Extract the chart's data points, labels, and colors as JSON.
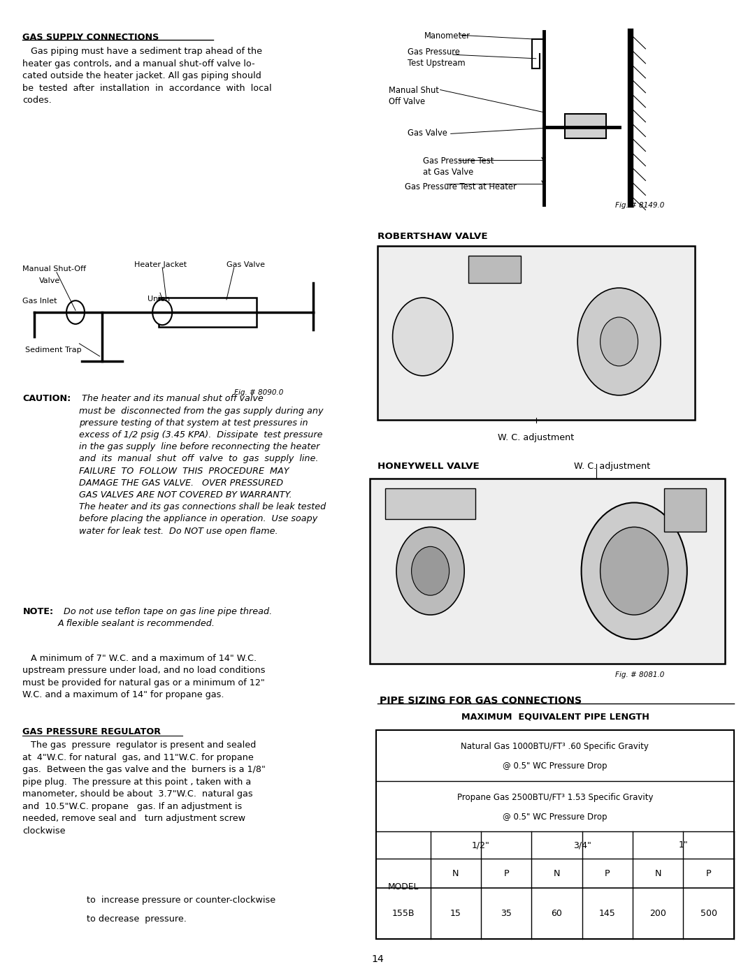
{
  "page_number": "14",
  "background_color": "#ffffff",
  "text_color": "#000000",
  "left_column": {
    "section1_title": "GAS SUPPLY CONNECTIONS",
    "section1_body_lines": [
      "   Gas piping must have a sediment trap ahead of the",
      "heater gas controls, and a manual shut-off valve lo-",
      "cated outside the heater jacket. All gas piping should",
      "be  tested  after  installation  in  accordance  with  local",
      "codes."
    ],
    "fig1_label": "Fig. # 8090.0",
    "caution_bold": "CAUTION:",
    "caution_body": " The heater and its manual shut off valve\nmust be  disconnected from the gas supply during any\npressure testing of that system at test pressures in\nexcess of 1/2 psig (3.45 KPA).  Dissipate  test pressure\nin the gas supply  line before reconnecting the heater\nand  its  manual  shut  off  valve  to  gas  supply  line.\nFAILURE  TO  FOLLOW  THIS  PROCEDURE  MAY\nDAMAGE THE GAS VALVE.   OVER PRESSURED\nGAS VALVES ARE NOT COVERED BY WARRANTY.\nThe heater and its gas connections shall be leak tested\nbefore placing the appliance in operation.  Use soapy\nwater for leak test.  Do NOT use open flame.",
    "note_bold": "NOTE:",
    "note_body": "  Do not use teflon tape on gas line pipe thread.\nA flexible sealant is recommended.",
    "para1_lines": [
      "   A minimum of 7\" W.C. and a maximum of 14\" W.C.",
      "upstream pressure under load, and no load conditions",
      "must be provided for natural gas or a minimum of 12\"",
      "W.C. and a maximum of 14\" for propane gas."
    ],
    "section2_title": "GAS PRESSURE REGULATOR",
    "section2_body_lines": [
      "   The gas  pressure  regulator is present and sealed",
      "at  4\"W.C. for natural  gas, and 11\"W.C. for propane",
      "gas.  Between the gas valve and the  burners is a 1/8\"",
      "pipe plug.  The pressure at this point , taken with a",
      "manometer, should be about  3.7\"W.C.  natural gas",
      "and  10.5\"W.C. propane   gas. If an adjustment is",
      "needed, remove seal and   turn adjustment screw",
      "clockwise"
    ],
    "indent_line1": "to  increase pressure or counter-clockwise",
    "indent_line2": "to decrease  pressure."
  },
  "right_column": {
    "fig2_label": "Fig. # 8149.0",
    "robertshaw_label": "ROBERTSHAW VALVE",
    "wc_adj1": "W. C. adjustment",
    "honeywell_label": "HONEYWELL VALVE",
    "wc_adj2": "W. C. adjustment",
    "fig3_label": "Fig. # 8081.0",
    "manometer_label": "Manometer",
    "gas_pressure_upstream": "Gas Pressure\nTest Upstream",
    "manual_shut": "Manual Shut\nOff Valve",
    "gas_valve_label": "Gas Valve",
    "gas_pressure_test1": "Gas Pressure Test\nat Gas Valve",
    "gas_pressure_test2": "Gas Pressure Test at Heater"
  },
  "pipe_sizing": {
    "title": "PIPE SIZING FOR GAS CONNECTIONS",
    "subtitle": "MAXIMUM  EQUIVALENT PIPE LENGTH",
    "row1_line1": "Natural Gas 1000BTU/FT³ .60 Specific Gravity",
    "row1_line2": "@ 0.5\" WC Pressure Drop",
    "row2_line1": "Propane Gas 2500BTU/FT³ 1.53 Specific Gravity",
    "row2_line2": "@ 0.5\" WC Pressure Drop",
    "col_header1": "1/2\"",
    "col_header2": "3/4\"",
    "col_header3": "1\"",
    "col_subheaders": [
      "N",
      "P",
      "N",
      "P",
      "N",
      "P"
    ],
    "model_label": "MODEL",
    "model": "155B",
    "values": [
      15,
      35,
      60,
      145,
      200,
      500
    ]
  }
}
